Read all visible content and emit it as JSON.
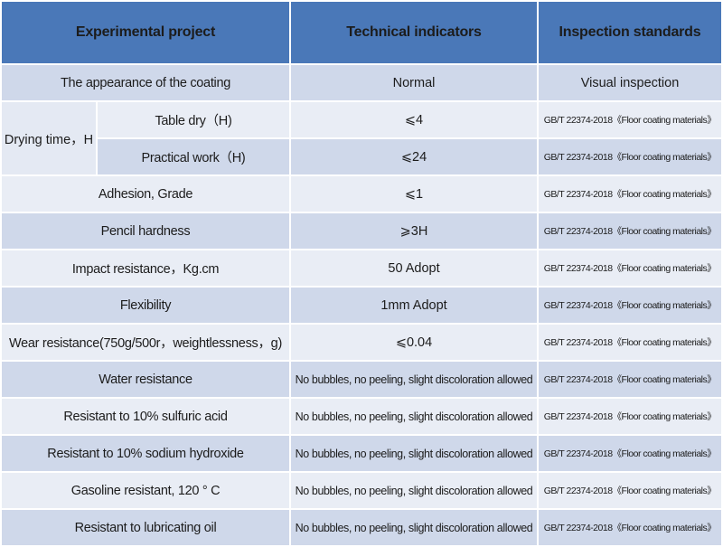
{
  "header": {
    "col1": "Experimental project",
    "col2": "Technical indicators",
    "col3": "Inspection standards"
  },
  "drying_group": "Drying time，H",
  "rows": [
    {
      "project": "The appearance of the coating",
      "indicator": "Normal",
      "standard": "Visual inspection"
    },
    {
      "project": "Table dry（H)",
      "indicator": "⩽4",
      "standard": "GB/T 22374-2018《Floor coating materials》"
    },
    {
      "project": "Practical work（H)",
      "indicator": "⩽24",
      "standard": "GB/T 22374-2018《Floor coating materials》"
    },
    {
      "project": "Adhesion, Grade",
      "indicator": "⩽1",
      "standard": "GB/T 22374-2018《Floor coating materials》"
    },
    {
      "project": "Pencil hardness",
      "indicator": "⩾3H",
      "standard": "GB/T 22374-2018《Floor coating materials》"
    },
    {
      "project": "Impact resistance，Kg.cm",
      "indicator": "50 Adopt",
      "standard": "GB/T 22374-2018《Floor coating materials》"
    },
    {
      "project": "Flexibility",
      "indicator": "1mm Adopt",
      "standard": "GB/T 22374-2018《Floor coating materials》"
    },
    {
      "project": "Wear resistance(750g/500r，weightlessness，g)",
      "indicator": "⩽0.04",
      "standard": "GB/T 22374-2018《Floor coating materials》"
    },
    {
      "project": "Water resistance",
      "indicator": "No bubbles, no peeling, slight discoloration allowed",
      "standard": "GB/T 22374-2018《Floor coating materials》"
    },
    {
      "project": "Resistant to 10% sulfuric acid",
      "indicator": "No bubbles, no peeling, slight discoloration allowed",
      "standard": "GB/T 22374-2018《Floor coating materials》"
    },
    {
      "project": "Resistant to 10% sodium hydroxide",
      "indicator": "No bubbles, no peeling, slight discoloration allowed",
      "standard": "GB/T 22374-2018《Floor coating materials》"
    },
    {
      "project": "Gasoline resistant, 120 ° C",
      "indicator": "No bubbles, no peeling, slight discoloration allowed",
      "standard": "GB/T 22374-2018《Floor coating materials》"
    },
    {
      "project": "Resistant to lubricating oil",
      "indicator": "No bubbles, no peeling, slight discoloration allowed",
      "standard": "GB/T 22374-2018《Floor coating materials》"
    }
  ],
  "colors": {
    "header_bg": "#4a78b8",
    "row_dark": "#cfd8ea",
    "row_light": "#e9edf5"
  }
}
